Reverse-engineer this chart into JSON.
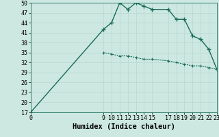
{
  "xlabel": "Humidex (Indice chaleur)",
  "ylabel": "",
  "bg_color": "#cce8e0",
  "grid_color": "#b8d8d0",
  "line_color": "#1a6b5a",
  "line1_x": [
    0,
    9,
    10,
    11,
    12,
    13,
    14,
    15,
    17,
    18,
    19,
    20,
    21,
    22,
    23
  ],
  "line1_y": [
    17,
    42,
    44,
    50,
    48,
    50,
    49,
    48,
    48,
    45,
    45,
    40,
    39,
    36,
    30
  ],
  "line2_x": [
    9,
    10,
    11,
    12,
    13,
    14,
    15,
    17,
    18,
    19,
    20,
    21,
    22,
    23
  ],
  "line2_y": [
    35,
    34.5,
    34,
    34,
    33.5,
    33,
    33,
    32.5,
    32,
    31.5,
    31,
    31,
    30.5,
    30
  ],
  "xlim": [
    0,
    23
  ],
  "ylim": [
    17,
    50
  ],
  "yticks": [
    17,
    20,
    23,
    26,
    29,
    32,
    35,
    38,
    41,
    44,
    47,
    50
  ],
  "xticks": [
    0,
    9,
    10,
    11,
    12,
    13,
    14,
    15,
    17,
    18,
    19,
    20,
    21,
    22,
    23
  ],
  "marker1": "+",
  "marker2": "+",
  "markersize1": 4,
  "markersize2": 3,
  "linewidth1": 1.0,
  "linewidth2": 0.8,
  "xlabel_fontsize": 7.5,
  "tick_fontsize": 6
}
